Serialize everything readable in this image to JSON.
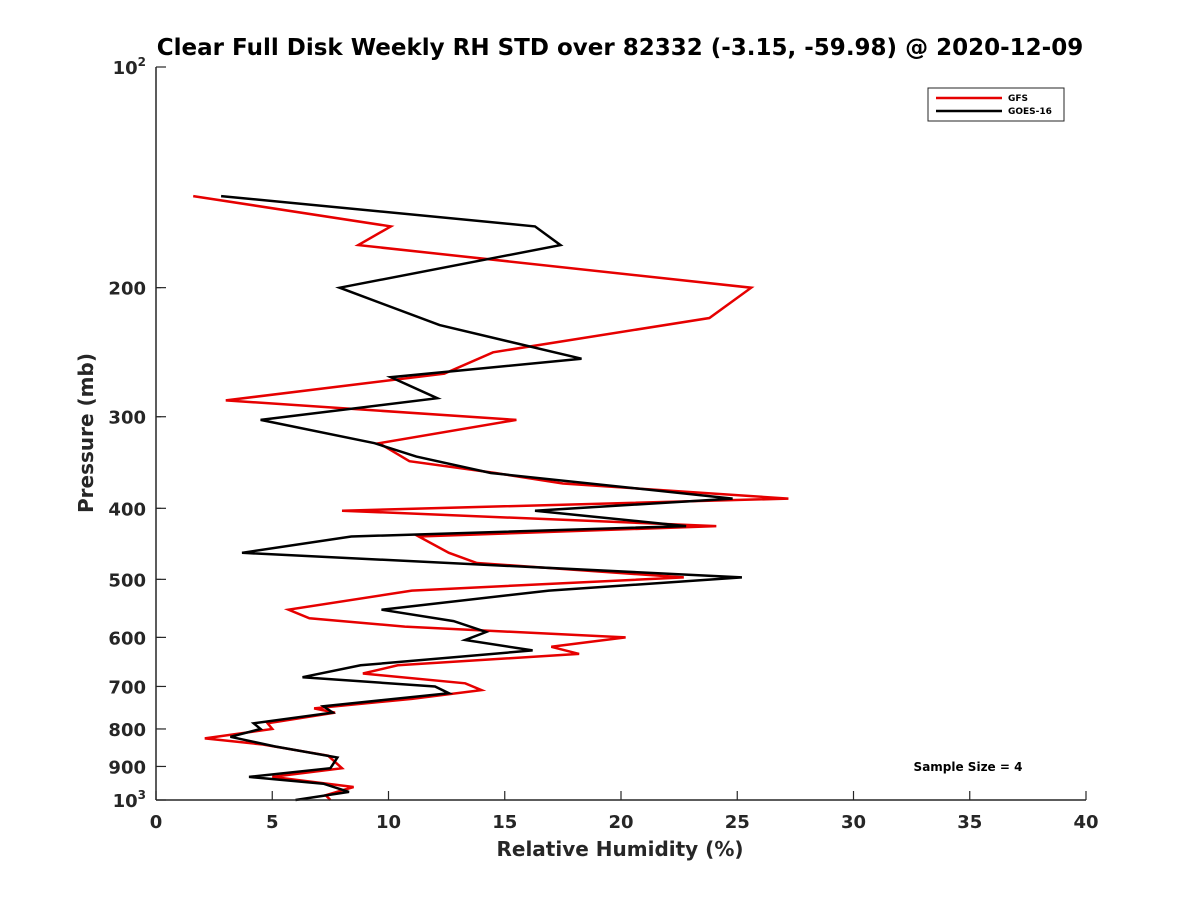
{
  "chart_data": {
    "type": "line",
    "title": "Clear Full Disk Weekly RH STD over 82332 (-3.15, -59.98) @ 2020-12-09",
    "xlabel": "Relative Humidity (%)",
    "ylabel": "Pressure (mb)",
    "xlim": [
      0,
      40
    ],
    "ylim": [
      100,
      1000
    ],
    "y_scale": "log",
    "y_reversed": true,
    "x_ticks": [
      0,
      5,
      10,
      15,
      20,
      25,
      30,
      35,
      40
    ],
    "x_tick_labels": [
      "0",
      "5",
      "10",
      "15",
      "20",
      "25",
      "30",
      "35",
      "40"
    ],
    "y_ticks": [
      {
        "value": 100,
        "base": "10",
        "exp": "2"
      },
      {
        "value": 200,
        "base": "200",
        "exp": ""
      },
      {
        "value": 300,
        "base": "300",
        "exp": ""
      },
      {
        "value": 400,
        "base": "400",
        "exp": ""
      },
      {
        "value": 500,
        "base": "500",
        "exp": ""
      },
      {
        "value": 600,
        "base": "600",
        "exp": ""
      },
      {
        "value": 700,
        "base": "700",
        "exp": ""
      },
      {
        "value": 800,
        "base": "800",
        "exp": ""
      },
      {
        "value": 900,
        "base": "900",
        "exp": ""
      },
      {
        "value": 1000,
        "base": "10",
        "exp": "3"
      }
    ],
    "grid": false,
    "legend_position": "top-right",
    "annotation": "Sample Size = 4",
    "series": [
      {
        "name": "GFS",
        "color": "#e60000",
        "points": [
          [
            1.6,
            150
          ],
          [
            10.1,
            165
          ],
          [
            8.7,
            175
          ],
          [
            25.6,
            200
          ],
          [
            23.8,
            220
          ],
          [
            14.5,
            245
          ],
          [
            12.4,
            262
          ],
          [
            3.0,
            285
          ],
          [
            15.5,
            303
          ],
          [
            9.6,
            326
          ],
          [
            10.9,
            345
          ],
          [
            14.6,
            358
          ],
          [
            17.5,
            370
          ],
          [
            27.2,
            388
          ],
          [
            8.0,
            403
          ],
          [
            24.1,
            423
          ],
          [
            11.3,
            437
          ],
          [
            12.6,
            460
          ],
          [
            13.8,
            475
          ],
          [
            22.7,
            497
          ],
          [
            11.0,
            518
          ],
          [
            5.7,
            550
          ],
          [
            6.6,
            565
          ],
          [
            10.7,
            580
          ],
          [
            20.2,
            600
          ],
          [
            17.0,
            618
          ],
          [
            18.2,
            632
          ],
          [
            10.4,
            655
          ],
          [
            8.9,
            672
          ],
          [
            13.3,
            693
          ],
          [
            14.0,
            708
          ],
          [
            11.0,
            728
          ],
          [
            6.8,
            750
          ],
          [
            7.7,
            760
          ],
          [
            4.8,
            786
          ],
          [
            5.0,
            800
          ],
          [
            2.1,
            824
          ],
          [
            4.6,
            840
          ],
          [
            7.4,
            870
          ],
          [
            8.0,
            905
          ],
          [
            5.0,
            930
          ],
          [
            8.5,
            960
          ],
          [
            7.3,
            985
          ],
          [
            7.5,
            1000
          ]
        ]
      },
      {
        "name": "GOES-16",
        "color": "#000000",
        "points": [
          [
            2.8,
            150
          ],
          [
            16.3,
            165
          ],
          [
            17.4,
            175
          ],
          [
            7.9,
            200
          ],
          [
            12.2,
            225
          ],
          [
            18.3,
            250
          ],
          [
            10.1,
            265
          ],
          [
            12.1,
            283
          ],
          [
            4.5,
            303
          ],
          [
            9.4,
            326
          ],
          [
            11.2,
            340
          ],
          [
            14.4,
            358
          ],
          [
            24.8,
            388
          ],
          [
            16.3,
            403
          ],
          [
            22.8,
            423
          ],
          [
            8.4,
            437
          ],
          [
            3.7,
            460
          ],
          [
            25.2,
            497
          ],
          [
            16.9,
            518
          ],
          [
            9.7,
            550
          ],
          [
            12.8,
            570
          ],
          [
            14.2,
            590
          ],
          [
            13.3,
            605
          ],
          [
            16.2,
            625
          ],
          [
            8.8,
            655
          ],
          [
            6.3,
            680
          ],
          [
            12.0,
            700
          ],
          [
            12.6,
            715
          ],
          [
            7.2,
            745
          ],
          [
            7.6,
            760
          ],
          [
            4.2,
            786
          ],
          [
            4.5,
            800
          ],
          [
            3.2,
            820
          ],
          [
            5.1,
            845
          ],
          [
            7.8,
            875
          ],
          [
            7.5,
            905
          ],
          [
            4.0,
            930
          ],
          [
            7.2,
            950
          ],
          [
            8.3,
            975
          ],
          [
            6.0,
            1000
          ]
        ]
      }
    ]
  }
}
